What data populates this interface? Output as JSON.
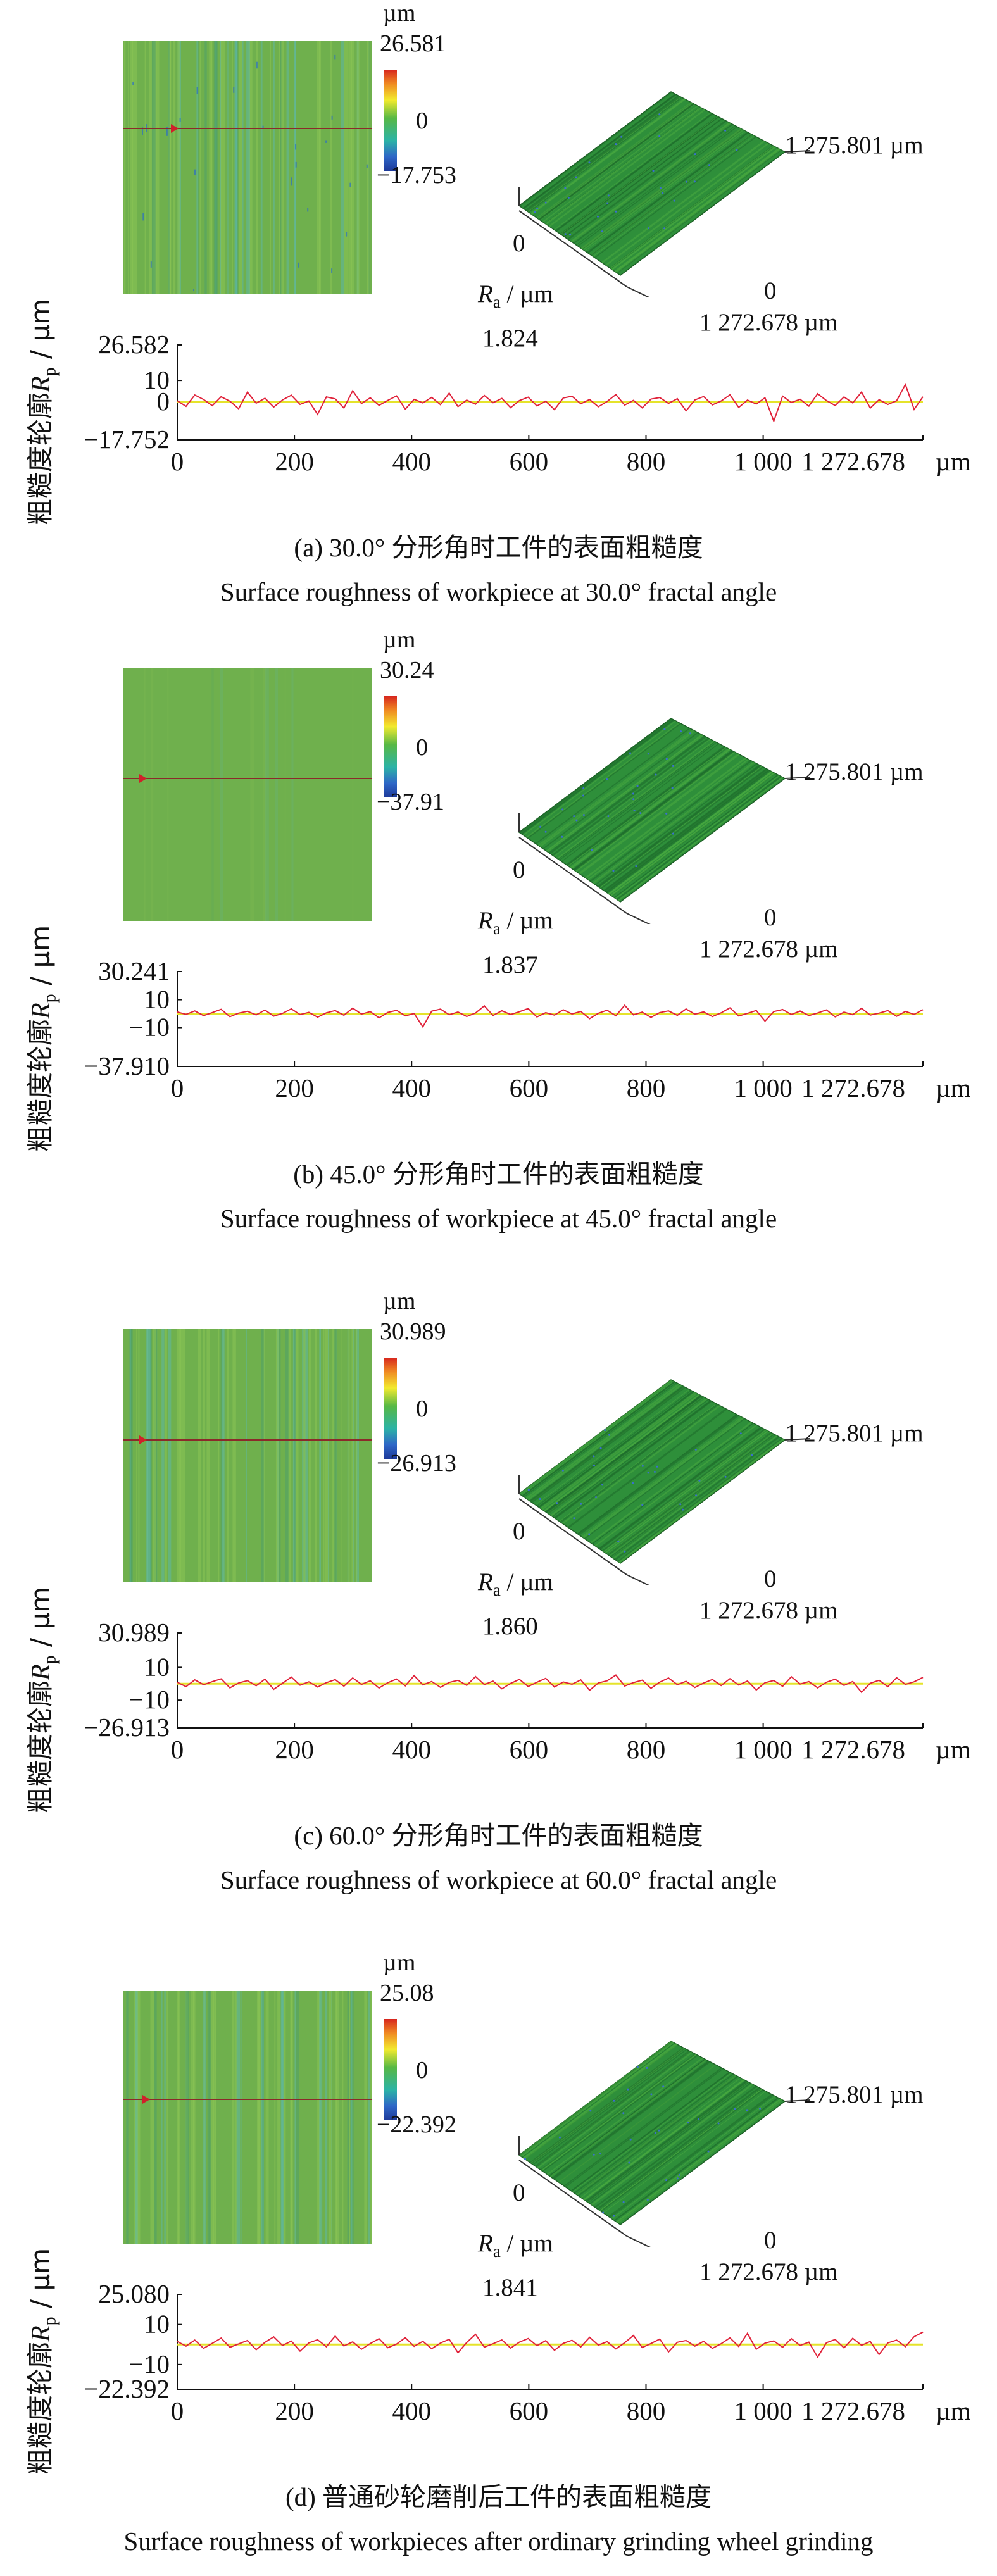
{
  "chart_data": [
    {
      "type": "line",
      "panel": "a",
      "colorbar": {
        "unit": "µm",
        "max": "26.581",
        "mid": "0",
        "min": "−17.753"
      },
      "surface3d": {
        "y_extent": "1 275.801 µm",
        "x_extent": "1 272.678 µm",
        "origin_left": "0",
        "origin_right": "0"
      },
      "ra_label": "R",
      "ra_sub": "a",
      "ra_unit": " / µm",
      "ra_value": "1.824",
      "profile": {
        "y_max_label": "26.582",
        "y_min_label": "−17.752",
        "y_ticks": [
          "10",
          "0"
        ],
        "y_ticks_values": [
          10,
          0
        ],
        "ylim": [
          -17.752,
          26.582
        ],
        "x_ticks": [
          "0",
          "200",
          "400",
          "600",
          "800",
          "1 000",
          "1 272.678",
          "µm"
        ],
        "x_ticks_values": [
          0,
          200,
          400,
          600,
          800,
          1000,
          1272.678
        ],
        "xlim": [
          0,
          1272.678
        ],
        "series": [
          {
            "values": [
              0.5,
              -2.1,
              3.2,
              1.1,
              -1.8,
              2.4,
              0.3,
              -3.2,
              4.5,
              -0.6,
              1.7,
              -2.4,
              0.9,
              3.1,
              -1.2,
              0.4,
              -5.8,
              2.3,
              1.4,
              -2.9,
              5.2,
              -0.8,
              1.9,
              -1.6,
              0.7,
              2.8,
              -3.4,
              1.2,
              -0.5,
              2.1,
              -1.3,
              4.1,
              -2.2,
              0.8,
              -1.1,
              3.0,
              -0.4,
              1.6,
              -2.7,
              0.6,
              2.2,
              -1.9,
              0.3,
              -3.6,
              1.8,
              2.6,
              -0.9,
              1.1,
              -2.3,
              0.2,
              3.4,
              -1.5,
              0.7,
              -2.8,
              1.3,
              2.0,
              -0.7,
              1.5,
              -4.2,
              0.9,
              2.5,
              -1.4,
              0.4,
              3.3,
              -2.6,
              0.8,
              -1.0,
              1.9,
              -9.0,
              2.7,
              -0.3,
              1.2,
              -2.0,
              3.8,
              0.6,
              -1.7,
              2.3,
              -0.5,
              4.6,
              -2.9,
              1.0,
              -1.2,
              0.5,
              8.1,
              -3.5,
              2.4
            ]
          }
        ],
        "line_color": "#e0223a",
        "mean_line_color": "#e5e32b"
      },
      "caption_cn": "(a) 30.0° 分形角时工件的表面粗糙度",
      "caption_en": "Surface roughness of workpiece at 30.0° fractal angle"
    },
    {
      "type": "line",
      "panel": "b",
      "colorbar": {
        "unit": "µm",
        "max": "30.24",
        "mid": "0",
        "min": "−37.91"
      },
      "surface3d": {
        "y_extent": "1 275.801 µm",
        "x_extent": "1 272.678 µm",
        "origin_left": "0",
        "origin_right": "0"
      },
      "ra_label": "R",
      "ra_sub": "a",
      "ra_unit": " / µm",
      "ra_value": "1.837",
      "profile": {
        "y_max_label": "30.241",
        "y_min_label": "−37.910",
        "y_ticks": [
          "10",
          "−10"
        ],
        "y_ticks_values": [
          10,
          -10
        ],
        "ylim": [
          -37.91,
          30.241
        ],
        "x_ticks": [
          "0",
          "200",
          "400",
          "600",
          "800",
          "1 000",
          "1 272.678",
          "µm"
        ],
        "x_ticks_values": [
          0,
          200,
          400,
          600,
          800,
          1000,
          1272.678
        ],
        "xlim": [
          0,
          1272.678
        ],
        "series": [
          {
            "values": [
              1.2,
              -0.5,
              2.0,
              -1.4,
              0.8,
              3.1,
              -2.2,
              0.4,
              1.7,
              -0.9,
              2.6,
              -1.8,
              0.2,
              3.5,
              -0.7,
              1.0,
              -2.5,
              0.6,
              2.2,
              -1.1,
              4.0,
              -0.3,
              1.5,
              -3.0,
              0.9,
              2.4,
              -1.6,
              0.1,
              -9.5,
              1.8,
              3.3,
              -0.8,
              1.2,
              -2.0,
              0.5,
              5.6,
              -1.3,
              2.1,
              -0.6,
              1.4,
              3.7,
              -2.4,
              0.7,
              -1.0,
              2.8,
              -0.2,
              1.6,
              -3.6,
              0.3,
              2.5,
              -1.5,
              6.0,
              -0.9,
              1.1,
              -2.7,
              0.8,
              2.0,
              -1.2,
              3.4,
              -0.4,
              1.3,
              -2.1,
              0.6,
              4.2,
              -1.7,
              0.2,
              2.3,
              -5.4,
              1.5,
              3.0,
              -0.6,
              1.9,
              -1.4,
              0.5,
              2.7,
              -2.3,
              1.1,
              -0.8,
              3.9,
              -1.0,
              0.4,
              2.2,
              -1.9,
              1.6,
              -0.5,
              2.9
            ]
          }
        ],
        "line_color": "#e0223a",
        "mean_line_color": "#e5e32b"
      },
      "caption_cn": "(b) 45.0° 分形角时工件的表面粗糙度",
      "caption_en": "Surface roughness of workpiece at 45.0° fractal angle"
    },
    {
      "type": "line",
      "panel": "c",
      "colorbar": {
        "unit": "µm",
        "max": "30.989",
        "mid": "0",
        "min": "−26.913"
      },
      "surface3d": {
        "y_extent": "1 275.801 µm",
        "x_extent": "1 272.678 µm",
        "origin_left": "0",
        "origin_right": "0"
      },
      "ra_label": "R",
      "ra_sub": "a",
      "ra_unit": " / µm",
      "ra_value": "1.860",
      "profile": {
        "y_max_label": "30.989",
        "y_min_label": "−26.913",
        "y_ticks": [
          "10",
          "−10"
        ],
        "y_ticks_values": [
          10,
          -10
        ],
        "ylim": [
          -26.913,
          30.989
        ],
        "x_ticks": [
          "0",
          "200",
          "400",
          "600",
          "800",
          "1 000",
          "1 272.678",
          "µm"
        ],
        "x_ticks_values": [
          0,
          200,
          400,
          600,
          800,
          1000,
          1272.678
        ],
        "xlim": [
          0,
          1272.678
        ],
        "series": [
          {
            "values": [
              0.9,
              -1.8,
              2.4,
              -0.6,
              1.3,
              3.0,
              -2.5,
              0.5,
              1.9,
              -1.2,
              2.8,
              -3.4,
              0.3,
              4.1,
              -0.9,
              1.2,
              -2.0,
              0.7,
              2.5,
              -1.5,
              3.6,
              -0.4,
              1.8,
              -2.6,
              0.6,
              2.9,
              -1.3,
              5.0,
              -0.7,
              1.4,
              -2.2,
              0.8,
              2.1,
              -1.0,
              4.4,
              -0.5,
              1.6,
              -3.1,
              0.2,
              2.7,
              -1.7,
              0.9,
              3.3,
              -2.0,
              1.1,
              -0.3,
              2.4,
              -4.0,
              0.5,
              1.8,
              5.3,
              -1.4,
              0.7,
              2.2,
              -2.8,
              1.0,
              3.5,
              -0.6,
              1.5,
              -2.3,
              0.4,
              2.6,
              -1.1,
              3.1,
              -0.8,
              1.7,
              -3.8,
              0.6,
              2.0,
              -1.6,
              4.3,
              -0.2,
              1.3,
              -2.5,
              0.9,
              2.8,
              -1.0,
              1.4,
              -5.2,
              0.3,
              2.1,
              -1.8,
              3.7,
              -0.4,
              1.2,
              3.9
            ]
          }
        ],
        "line_color": "#e0223a",
        "mean_line_color": "#e5e32b"
      },
      "caption_cn": "(c) 60.0° 分形角时工件的表面粗糙度",
      "caption_en": "Surface roughness of workpiece at 60.0° fractal angle"
    },
    {
      "type": "line",
      "panel": "d",
      "colorbar": {
        "unit": "µm",
        "max": "25.08",
        "mid": "0",
        "min": "−22.392"
      },
      "surface3d": {
        "y_extent": "1 275.801 µm",
        "x_extent": "1 272.678 µm",
        "origin_left": "0",
        "origin_right": "0"
      },
      "ra_label": "R",
      "ra_sub": "a",
      "ra_unit": " / µm",
      "ra_value": "1.841",
      "profile": {
        "y_max_label": "25.080",
        "y_min_label": "−22.392",
        "y_ticks": [
          "10",
          "−10"
        ],
        "y_ticks_values": [
          10,
          -10
        ],
        "ylim": [
          -22.392,
          25.08
        ],
        "x_ticks": [
          "0",
          "200",
          "400",
          "600",
          "800",
          "1 000",
          "1 272.678",
          "µm"
        ],
        "x_ticks_values": [
          0,
          200,
          400,
          600,
          800,
          1000,
          1272.678
        ],
        "xlim": [
          0,
          1272.678
        ],
        "series": [
          {
            "values": [
              1.5,
              -0.8,
              2.2,
              -1.9,
              0.6,
              3.2,
              -1.4,
              0.3,
              2.0,
              -2.6,
              1.1,
              3.8,
              -0.5,
              1.7,
              -3.3,
              0.8,
              2.4,
              -1.1,
              4.2,
              -0.7,
              1.3,
              -2.4,
              0.5,
              2.9,
              -1.6,
              0.2,
              3.4,
              -0.9,
              1.6,
              -2.1,
              0.7,
              2.6,
              -4.1,
              1.0,
              5.1,
              -1.3,
              0.4,
              2.3,
              -1.8,
              1.2,
              3.0,
              -0.6,
              1.9,
              -2.9,
              0.6,
              2.1,
              -1.2,
              3.6,
              -0.3,
              1.4,
              -2.2,
              0.9,
              4.5,
              -1.5,
              0.5,
              2.7,
              -3.7,
              1.1,
              2.0,
              -0.8,
              1.6,
              -1.9,
              0.4,
              3.3,
              -1.0,
              5.6,
              -2.4,
              0.7,
              1.8,
              -1.4,
              2.9,
              -0.5,
              1.2,
              -6.3,
              0.9,
              2.5,
              -1.7,
              3.1,
              -0.4,
              1.5,
              -5.0,
              0.8,
              2.2,
              -1.1,
              3.9,
              6.2
            ]
          }
        ],
        "line_color": "#e0223a",
        "mean_line_color": "#e5e32b"
      },
      "caption_cn": "(d) 普通砂轮磨削后工件的表面粗糙度",
      "caption_en": "Surface roughness of workpieces after ordinary grinding wheel grinding"
    }
  ],
  "y_axis_label": {
    "prefix": "粗糙度轮廓",
    "var": "R",
    "sub": "p",
    "unit": " / µm"
  },
  "colors": {
    "map_green": "#6fb04d",
    "surface_green": "#2e8f3a",
    "line_red": "#e0223a",
    "mean_yellow": "#e5e32b"
  }
}
